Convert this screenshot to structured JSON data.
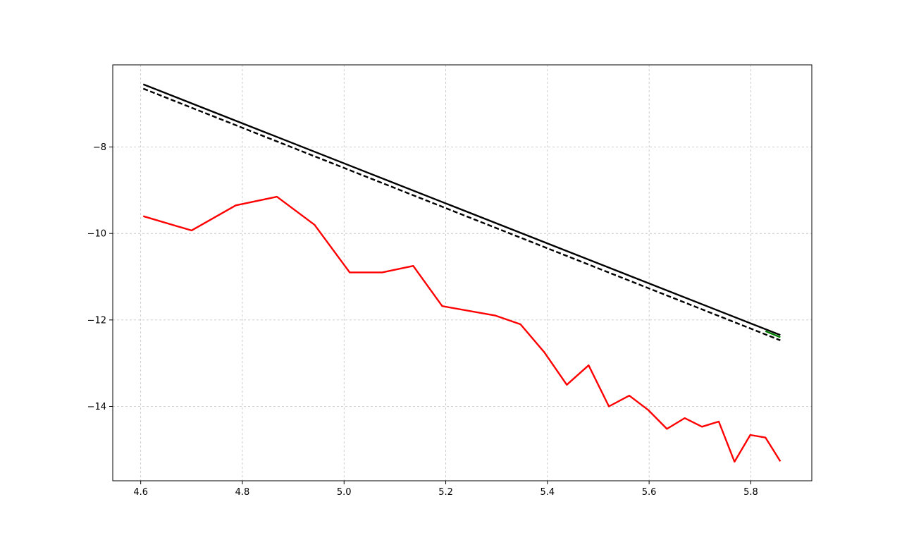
{
  "chart_data": {
    "type": "line",
    "xlabel": "",
    "ylabel": "",
    "xlim": [
      4.545,
      5.92
    ],
    "ylim": [
      -15.72,
      -6.1
    ],
    "x_ticks": [
      4.6,
      4.8,
      5.0,
      5.2,
      5.4,
      5.6,
      5.8
    ],
    "y_ticks": [
      -8,
      -10,
      -12,
      -14
    ],
    "grid": true,
    "legend": "none",
    "series": [
      {
        "color": "#ff0000",
        "style": "solid",
        "x": [
          4.605,
          4.7,
          4.787,
          4.868,
          4.942,
          5.011,
          5.075,
          5.136,
          5.193,
          5.298,
          5.347,
          5.394,
          5.438,
          5.481,
          5.521,
          5.561,
          5.598,
          5.635,
          5.67,
          5.704,
          5.737,
          5.768,
          5.799,
          5.829,
          5.858
        ],
        "y": [
          -9.6,
          -9.93,
          -9.35,
          -9.15,
          -9.8,
          -10.9,
          -10.9,
          -10.75,
          -11.68,
          -11.9,
          -12.1,
          -12.75,
          -13.5,
          -13.05,
          -14.0,
          -13.75,
          -14.08,
          -14.52,
          -14.27,
          -14.47,
          -14.35,
          -15.28,
          -14.66,
          -14.72,
          -15.27
        ]
      },
      {
        "color": "#000000",
        "style": "solid",
        "x": [
          4.605,
          5.858
        ],
        "y": [
          -6.55,
          -12.35
        ]
      },
      {
        "color": "#000000",
        "style": "dashed",
        "x": [
          4.605,
          5.858
        ],
        "y": [
          -6.65,
          -12.47
        ]
      },
      {
        "color": "#008000",
        "style": "solid",
        "x": [
          5.829,
          5.858
        ],
        "y": [
          -12.26,
          -12.4
        ]
      }
    ]
  }
}
